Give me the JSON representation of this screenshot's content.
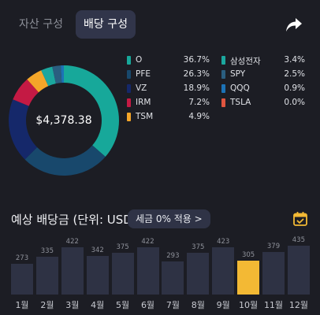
{
  "tabs": [
    {
      "label": "자산 구성",
      "active": false
    },
    {
      "label": "배당 구성",
      "active": true
    }
  ],
  "icons": {
    "share": "share-arrow-icon",
    "calendar": "calendar-check-icon"
  },
  "colors": {
    "accent": "#f3b934",
    "bar": "#2e3244",
    "background": "#1c1d24"
  },
  "donut": {
    "total": "$4,378.38",
    "slices": [
      {
        "name": "O",
        "value": 36.7,
        "color": "#17a89a"
      },
      {
        "name": "PFE",
        "value": 26.3,
        "color": "#18486c"
      },
      {
        "name": "VZ",
        "value": 18.9,
        "color": "#15286a"
      },
      {
        "name": "IRM",
        "value": 7.2,
        "color": "#c41a44"
      },
      {
        "name": "TSM",
        "value": 4.9,
        "color": "#f4a629"
      },
      {
        "name": "삼성전자",
        "value": 3.4,
        "color": "#1ba79e"
      },
      {
        "name": "SPY",
        "value": 2.5,
        "color": "#2a5e80"
      },
      {
        "name": "QQQ",
        "value": 0.9,
        "color": "#1c72b6"
      },
      {
        "name": "TSLA",
        "value": 0.0,
        "color": "#e0553f"
      }
    ]
  },
  "legend": [
    {
      "name": "O",
      "pct": "36.7%",
      "color": "#17a89a"
    },
    {
      "name": "PFE",
      "pct": "26.3%",
      "color": "#18486c"
    },
    {
      "name": "VZ",
      "pct": "18.9%",
      "color": "#15286a"
    },
    {
      "name": "IRM",
      "pct": "7.2%",
      "color": "#c41a44"
    },
    {
      "name": "TSM",
      "pct": "4.9%",
      "color": "#f4a629"
    },
    {
      "name": "삼성전자",
      "pct": "3.4%",
      "color": "#1ba79e"
    },
    {
      "name": "SPY",
      "pct": "2.5%",
      "color": "#2a5e80"
    },
    {
      "name": "QQQ",
      "pct": "0.9%",
      "color": "#1c72b6"
    },
    {
      "name": "TSLA",
      "pct": "0.0%",
      "color": "#e0553f"
    }
  ],
  "dividends": {
    "title": "예상 배당금 (단위: USD)",
    "tax_chip": "세금 0% 적용 >",
    "months": [
      "1월",
      "2월",
      "3월",
      "4월",
      "5월",
      "6월",
      "7월",
      "8월",
      "9월",
      "10월",
      "11월",
      "12월"
    ],
    "values": [
      273,
      335,
      422,
      342,
      375,
      422,
      293,
      375,
      423,
      305,
      379,
      435
    ],
    "highlight_month": "10월"
  }
}
